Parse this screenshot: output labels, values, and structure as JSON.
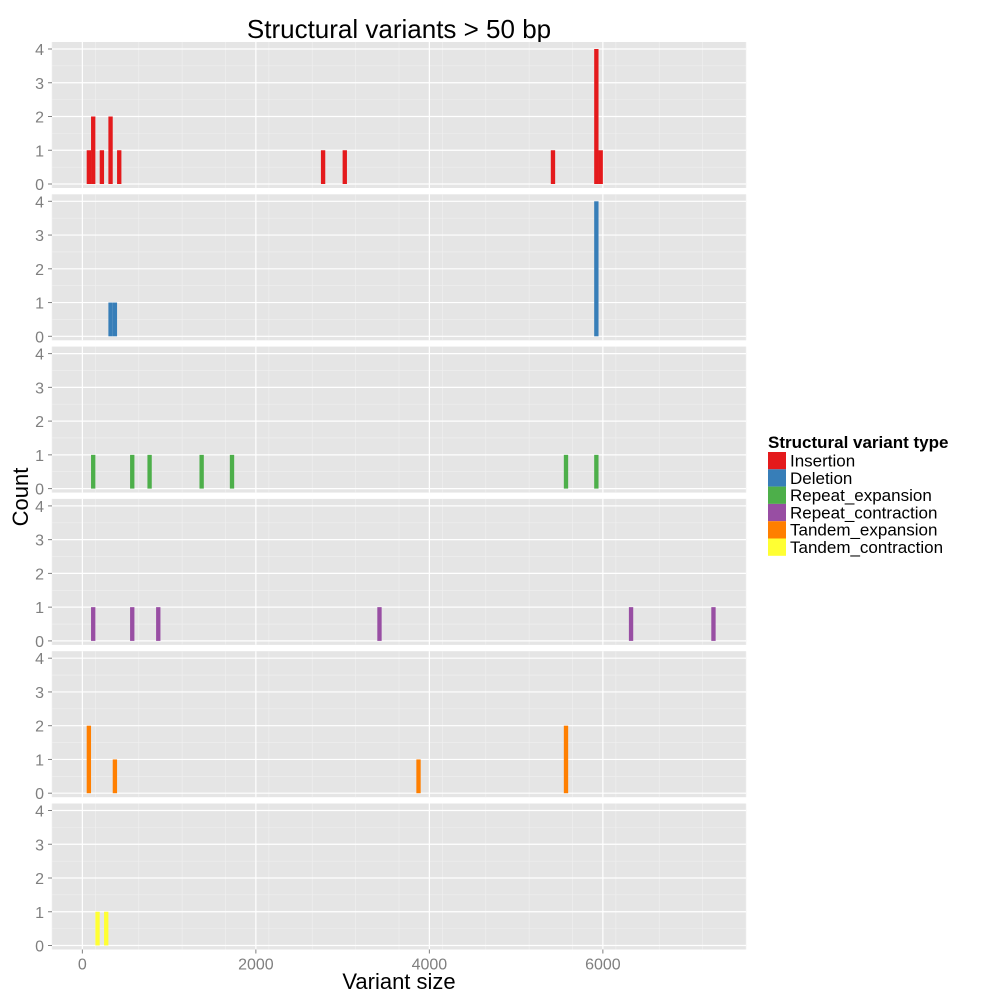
{
  "chart_data": {
    "type": "bar",
    "title": "Structural variants > 50 bp",
    "xlabel": "Variant size",
    "ylabel": "Count",
    "xlim": [
      -350,
      7650
    ],
    "ylim": [
      0,
      4
    ],
    "x_ticks": [
      0,
      2000,
      4000,
      6000
    ],
    "x_tick_labels": [
      "0",
      "2000",
      "4000",
      "6000"
    ],
    "y_ticks": [
      0,
      1,
      2,
      3,
      4
    ],
    "y_tick_labels": [
      "0",
      "1",
      "2",
      "3",
      "4"
    ],
    "bin_width": 50,
    "grid": true,
    "legend": {
      "title": "Structural variant type",
      "position": "right"
    },
    "series": [
      {
        "name": "Insertion",
        "color": "#E41A1C",
        "points": [
          [
            75,
            1
          ],
          [
            125,
            2
          ],
          [
            225,
            1
          ],
          [
            325,
            2
          ],
          [
            425,
            1
          ],
          [
            2775,
            1
          ],
          [
            3025,
            1
          ],
          [
            5425,
            1
          ],
          [
            5925,
            4
          ],
          [
            5975,
            1
          ]
        ]
      },
      {
        "name": "Deletion",
        "color": "#377EB8",
        "points": [
          [
            325,
            1
          ],
          [
            375,
            1
          ],
          [
            5925,
            4
          ]
        ]
      },
      {
        "name": "Repeat_expansion",
        "color": "#4DAF4A",
        "points": [
          [
            125,
            1
          ],
          [
            575,
            1
          ],
          [
            775,
            1
          ],
          [
            1375,
            1
          ],
          [
            1725,
            1
          ],
          [
            5575,
            1
          ],
          [
            5925,
            1
          ]
        ]
      },
      {
        "name": "Repeat_contraction",
        "color": "#984EA3",
        "points": [
          [
            125,
            1
          ],
          [
            575,
            1
          ],
          [
            875,
            1
          ],
          [
            3425,
            1
          ],
          [
            6325,
            1
          ],
          [
            7275,
            1
          ]
        ]
      },
      {
        "name": "Tandem_expansion",
        "color": "#FF7F00",
        "points": [
          [
            75,
            2
          ],
          [
            375,
            1
          ],
          [
            3875,
            1
          ],
          [
            5575,
            2
          ]
        ]
      },
      {
        "name": "Tandem_contraction",
        "color": "#FFFF33",
        "points": [
          [
            175,
            1
          ],
          [
            275,
            1
          ]
        ]
      }
    ]
  }
}
